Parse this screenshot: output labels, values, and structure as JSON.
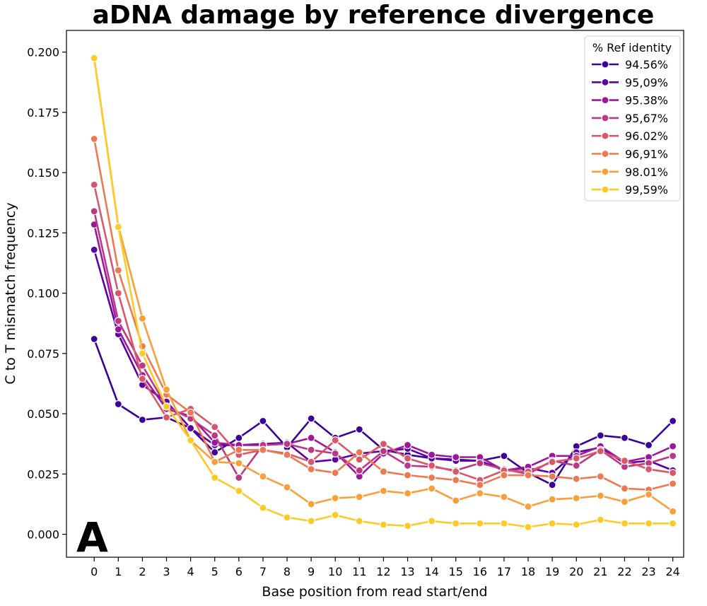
{
  "chart_data": {
    "type": "line",
    "title": "aDNA damage by reference divergence",
    "xlabel": "Base position from read start/end",
    "ylabel": "C to T mismatch frequency",
    "panel_label": "A",
    "x": [
      0,
      1,
      2,
      3,
      4,
      5,
      6,
      7,
      8,
      9,
      10,
      11,
      12,
      13,
      14,
      15,
      16,
      17,
      18,
      19,
      20,
      21,
      22,
      23,
      24
    ],
    "xticks": [
      "0",
      "1",
      "2",
      "3",
      "4",
      "5",
      "6",
      "7",
      "8",
      "9",
      "10",
      "11",
      "12",
      "13",
      "14",
      "15",
      "16",
      "17",
      "18",
      "19",
      "20",
      "21",
      "22",
      "23",
      "24"
    ],
    "ylim": [
      -0.0095,
      0.209
    ],
    "yticks": [
      0.0,
      0.025,
      0.05,
      0.075,
      0.1,
      0.125,
      0.15,
      0.175,
      0.2
    ],
    "ytick_labels": [
      "0.000",
      "0.025",
      "0.050",
      "0.075",
      "0.100",
      "0.125",
      "0.150",
      "0.175",
      "0.200"
    ],
    "legend_title": "% Ref identity",
    "legend_position": "top-right",
    "series": [
      {
        "name": "94.56%",
        "color": "#3a049a",
        "values": [
          0.081,
          0.054,
          0.0475,
          0.0485,
          0.044,
          0.034,
          0.04,
          0.047,
          0.036,
          0.048,
          0.04,
          0.0435,
          0.035,
          0.033,
          0.0315,
          0.031,
          0.0305,
          0.0325,
          0.0255,
          0.0205,
          0.0365,
          0.041,
          0.04,
          0.037,
          0.047
        ]
      },
      {
        "name": "95,09%",
        "color": "#5c01a6",
        "values": [
          0.118,
          0.083,
          0.062,
          0.055,
          0.044,
          0.037,
          0.037,
          0.0375,
          0.038,
          0.03,
          0.031,
          0.0335,
          0.0345,
          0.0355,
          0.0315,
          0.0305,
          0.0305,
          0.0265,
          0.0275,
          0.0255,
          0.034,
          0.036,
          0.0295,
          0.0305,
          0.0265
        ]
      },
      {
        "name": "95.38%",
        "color": "#9c179e",
        "values": [
          0.1285,
          0.085,
          0.066,
          0.052,
          0.049,
          0.038,
          0.037,
          0.037,
          0.0375,
          0.04,
          0.034,
          0.024,
          0.0335,
          0.037,
          0.033,
          0.032,
          0.032,
          0.0265,
          0.028,
          0.0325,
          0.0325,
          0.0365,
          0.03,
          0.032,
          0.0365
        ]
      },
      {
        "name": "95,67%",
        "color": "#bd3786",
        "values": [
          0.134,
          0.0885,
          0.07,
          0.053,
          0.048,
          0.041,
          0.0235,
          0.037,
          0.0375,
          0.035,
          0.0335,
          0.0265,
          0.0345,
          0.0285,
          0.028,
          0.0265,
          0.0295,
          0.027,
          0.025,
          0.0305,
          0.0285,
          0.035,
          0.028,
          0.0295,
          0.0325
        ]
      },
      {
        "name": "96.02%",
        "color": "#d8576b",
        "values": [
          0.145,
          0.1,
          0.0645,
          0.0485,
          0.052,
          0.0445,
          0.033,
          0.035,
          0.0335,
          0.03,
          0.039,
          0.031,
          0.0375,
          0.0315,
          0.0285,
          0.026,
          0.0225,
          0.0265,
          0.026,
          0.03,
          0.0315,
          0.0345,
          0.0305,
          0.027,
          0.0255
        ]
      },
      {
        "name": "96,91%",
        "color": "#ed7953",
        "values": [
          0.164,
          0.1095,
          0.078,
          0.058,
          0.0505,
          0.03,
          0.035,
          0.035,
          0.033,
          0.027,
          0.0255,
          0.034,
          0.026,
          0.0245,
          0.0235,
          0.0225,
          0.0205,
          0.0245,
          0.0245,
          0.024,
          0.023,
          0.024,
          0.019,
          0.0185,
          0.021
        ]
      },
      {
        "name": "98.01%",
        "color": "#fb9f3a",
        "values": [
          0.1975,
          0.128,
          0.0895,
          0.06,
          0.039,
          0.03,
          0.0295,
          0.024,
          0.0195,
          0.0125,
          0.015,
          0.0155,
          0.018,
          0.017,
          0.019,
          0.014,
          0.017,
          0.0155,
          0.0115,
          0.0145,
          0.015,
          0.016,
          0.0135,
          0.0165,
          0.0095
        ]
      },
      {
        "name": "99,59%",
        "color": "#fdca26",
        "values": [
          0.1975,
          0.1275,
          0.075,
          0.053,
          0.039,
          0.0235,
          0.018,
          0.011,
          0.007,
          0.0055,
          0.008,
          0.0055,
          0.004,
          0.0035,
          0.0055,
          0.0045,
          0.0045,
          0.0045,
          0.003,
          0.0045,
          0.004,
          0.006,
          0.0045,
          0.0045,
          0.0045
        ]
      }
    ]
  }
}
